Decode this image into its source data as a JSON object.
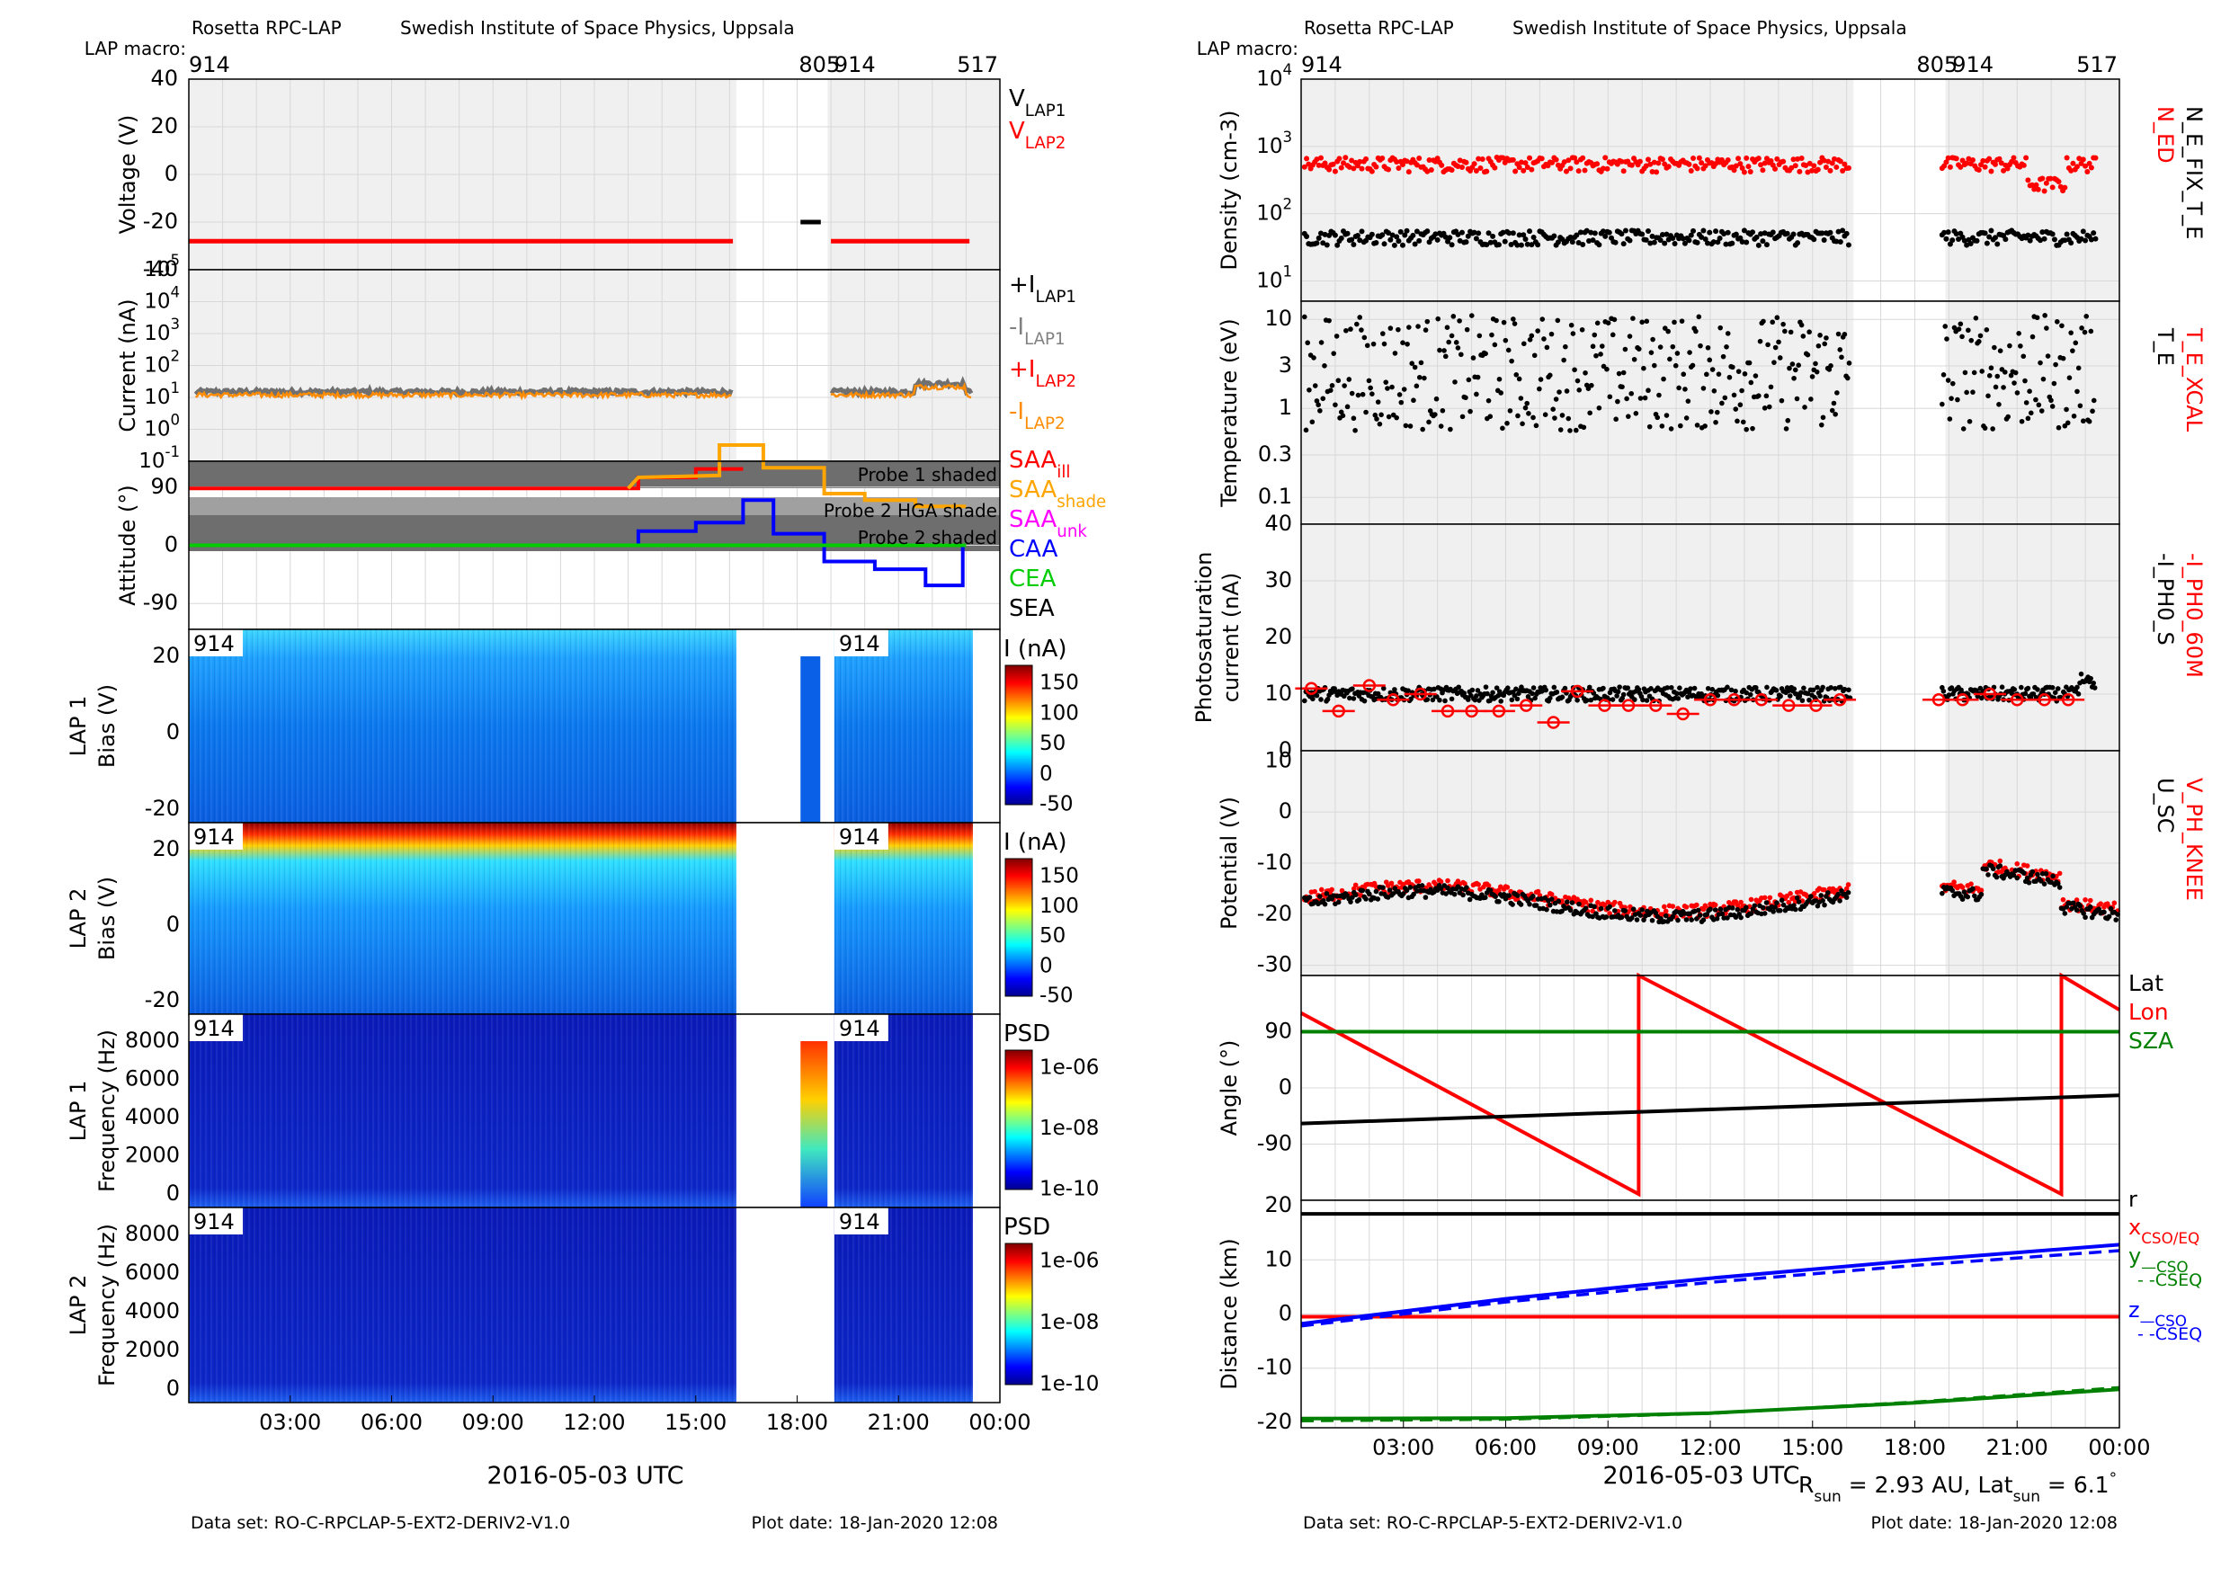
{
  "left": {
    "header": {
      "title": "Rosetta RPC-LAP",
      "institute": "Swedish Institute of Space Physics, Uppsala",
      "macro_label": "LAP macro:"
    },
    "macros": [
      "914",
      "805",
      "914",
      "517"
    ],
    "footer": {
      "dataset": "Data set: RO-C-RPCLAP-5-EXT2-DERIV2-V1.0",
      "plot_date": "Plot date: 18-Jan-2020 12:08"
    },
    "xlabel": "2016-05-03 UTC",
    "xticks": [
      "03:00",
      "06:00",
      "09:00",
      "12:00",
      "15:00",
      "18:00",
      "21:00",
      "00:00"
    ]
  },
  "right": {
    "header": {
      "title": "Rosetta RPC-LAP",
      "institute": "Swedish Institute of Space Physics, Uppsala",
      "macro_label": "LAP macro:"
    },
    "macros": [
      "914",
      "805",
      "914",
      "517"
    ],
    "footer": {
      "dataset": "Data set: RO-C-RPCLAP-5-EXT2-DERIV2-V1.0",
      "plot_date": "Plot date: 18-Jan-2020 12:08"
    },
    "xlabel": "2016-05-03 UTC",
    "xticks": [
      "03:00",
      "06:00",
      "09:00",
      "12:00",
      "15:00",
      "18:00",
      "21:00",
      "00:00"
    ],
    "rsun_text": "R",
    "rsun_sub": "sun",
    "rsun_mid": " = 2.93 AU, Lat",
    "latsun_sub": "sun",
    "latsun_val": " = 6.1",
    "deg": "°"
  },
  "chart_data": [
    {
      "type": "line",
      "title": "Voltage",
      "ylabel": "Voltage (V)",
      "ylim": [
        -40,
        40
      ],
      "yticks": [
        "40",
        "20",
        "0",
        "-20",
        "-40"
      ],
      "legend": [
        {
          "text": "V",
          "sub": "LAP1",
          "color": "#000000"
        },
        {
          "text": "V",
          "sub": "LAP2",
          "color": "#ff0000"
        }
      ],
      "series": [
        {
          "name": "V_LAP2",
          "color": "#ff0000",
          "segments": [
            {
              "x": [
                0,
                16.1
              ],
              "y": [
                -28,
                -28
              ]
            },
            {
              "x": [
                19,
                23.1
              ],
              "y": [
                -28,
                -28
              ]
            }
          ]
        },
        {
          "name": "V_LAP1",
          "color": "#000000",
          "segments": [
            {
              "x": [
                18.1,
                18.7
              ],
              "y": [
                -20,
                -20
              ]
            }
          ]
        }
      ]
    },
    {
      "type": "line",
      "title": "Current",
      "ylabel": "Current (nA)",
      "yscale": "log",
      "ylim": [
        0.1,
        100000
      ],
      "yticks": [
        {
          "base": "10",
          "exp": "-1"
        },
        {
          "base": "10",
          "exp": "0"
        },
        {
          "base": "10",
          "exp": "1"
        },
        {
          "base": "10",
          "exp": "2"
        },
        {
          "base": "10",
          "exp": "3"
        },
        {
          "base": "10",
          "exp": "4"
        },
        {
          "base": "10",
          "exp": "5"
        }
      ],
      "legend": [
        {
          "text": "+I",
          "sub": "LAP1",
          "color": "#000000"
        },
        {
          "text": "-I",
          "sub": "LAP1",
          "color": "#808080"
        },
        {
          "text": "+I",
          "sub": "LAP2",
          "color": "#ff0000"
        },
        {
          "text": "-I",
          "sub": "LAP2",
          "color": "#ff8c00"
        }
      ],
      "series": [
        {
          "name": "-I_LAP1",
          "color": "#707070",
          "approx_value": 15
        },
        {
          "name": "-I_LAP2",
          "color": "#ff8c00",
          "approx_value": 12
        }
      ]
    },
    {
      "type": "line",
      "title": "Attitude",
      "ylabel": "Attitude (°)",
      "ylim": [
        -130,
        130
      ],
      "yticks": [
        "90",
        "0",
        "-90"
      ],
      "annotations": [
        "Probe 1 shaded",
        "Probe 2 HGA shade",
        "Probe 2 shaded"
      ],
      "legend": [
        {
          "text": "SAA",
          "sub": "ill",
          "color": "#ff0000"
        },
        {
          "text": "SAA",
          "sub": "shade",
          "color": "#ffa500"
        },
        {
          "text": "SAA",
          "sub": "unk",
          "color": "#ff00ff"
        },
        {
          "text": "CAA",
          "sub": "",
          "color": "#0000ff"
        },
        {
          "text": "CEA",
          "sub": "",
          "color": "#00cc00"
        },
        {
          "text": "SEA",
          "sub": "",
          "color": "#000000"
        }
      ],
      "series": [
        {
          "name": "SAA_ill",
          "color": "#ff0000",
          "x": [
            0,
            13.3,
            13.3,
            15,
            15,
            16.4
          ],
          "y": [
            88,
            88,
            105,
            105,
            118,
            118
          ]
        },
        {
          "name": "SAA_shade",
          "color": "#ffa500",
          "x": [
            13,
            13.3,
            15.7,
            15.7,
            17,
            17,
            18.8,
            18.8,
            20,
            20,
            21.5,
            21.5,
            23
          ],
          "y": [
            88,
            105,
            108,
            155,
            155,
            120,
            120,
            80,
            80,
            70,
            70,
            60,
            60
          ]
        },
        {
          "name": "CAA",
          "color": "#0000ff",
          "x": [
            0,
            13.3,
            13.3,
            15,
            15,
            16.4,
            16.4,
            17.3,
            17.3,
            18.8,
            18.8,
            20.3,
            20.3,
            21.8,
            21.8,
            22.9,
            22.9
          ],
          "y": [
            0,
            0,
            22,
            22,
            35,
            35,
            70,
            70,
            18,
            18,
            -25,
            -25,
            -37,
            -37,
            -62,
            -62,
            0
          ]
        },
        {
          "name": "CEA",
          "color": "#00cc00",
          "x": [
            0,
            23
          ],
          "y": [
            0,
            0
          ]
        }
      ]
    },
    {
      "type": "heatmap",
      "title": "LAP 1",
      "ylabel": "Bias (V)",
      "yticks": [
        "20",
        "0",
        "-20"
      ],
      "colorbar": {
        "label": "I (nA)",
        "ticks": [
          "150",
          "100",
          "50",
          "0",
          "-50"
        ]
      }
    },
    {
      "type": "heatmap",
      "title": "LAP 2",
      "ylabel": "Bias (V)",
      "yticks": [
        "20",
        "0",
        "-20"
      ],
      "colorbar": {
        "label": "I (nA)",
        "ticks": [
          "150",
          "100",
          "50",
          "0",
          "-50"
        ]
      }
    },
    {
      "type": "heatmap",
      "title": "LAP 1",
      "ylabel": "Frequency (Hz)",
      "yticks": [
        "8000",
        "6000",
        "4000",
        "2000",
        "0"
      ],
      "colorbar": {
        "label": "PSD",
        "ticks": [
          "1e-06",
          "1e-08",
          "1e-10"
        ]
      }
    },
    {
      "type": "heatmap",
      "title": "LAP 2",
      "ylabel": "Frequency (Hz)",
      "yticks": [
        "8000",
        "6000",
        "4000",
        "2000",
        "0"
      ],
      "colorbar": {
        "label": "PSD",
        "ticks": [
          "1e-06",
          "1e-08",
          "1e-10"
        ]
      }
    },
    {
      "type": "scatter",
      "title": "Density",
      "ylabel": "Density (cm-3)",
      "yscale": "log",
      "ylim": [
        5,
        10000
      ],
      "yticks": [
        {
          "base": "10",
          "exp": "1"
        },
        {
          "base": "10",
          "exp": "2"
        },
        {
          "base": "10",
          "exp": "3"
        },
        {
          "base": "10",
          "exp": "4"
        }
      ],
      "side_labels": [
        {
          "text": "N_ED",
          "color": "#ff0000"
        },
        {
          "text": "N_E_FIX_T_E",
          "color": "#000000"
        }
      ],
      "series": [
        {
          "name": "N_ED",
          "color": "#ff0000",
          "approx_value": 550
        },
        {
          "name": "N_E_FIX_T_E",
          "color": "#000000",
          "approx_value": 45
        }
      ]
    },
    {
      "type": "scatter",
      "title": "Temperature",
      "ylabel": "Temperature (eV)",
      "yscale": "log",
      "ylim": [
        0.05,
        16
      ],
      "yticks": [
        "10",
        "3",
        "1",
        "0.3",
        "0.1"
      ],
      "side_labels": [
        {
          "text": "T_E_XCAL",
          "color": "#ff0000"
        },
        {
          "text": "T_E",
          "color": "#000000"
        }
      ],
      "series": [
        {
          "name": "T_E",
          "color": "#000000",
          "approx_value": 2.5
        }
      ]
    },
    {
      "type": "scatter",
      "title": "Photosaturation current",
      "ylabel": "Photosaturation current (nA)",
      "ylim": [
        0,
        40
      ],
      "yticks": [
        "40",
        "30",
        "20",
        "10",
        "0"
      ],
      "side_labels": [
        {
          "text": "-I_PH0_60M",
          "color": "#ff0000"
        },
        {
          "text": "-I_PH0_S",
          "color": "#000000"
        }
      ],
      "series": [
        {
          "name": "-I_PH0_S",
          "color": "#000000",
          "approx_value": 10
        },
        {
          "name": "-I_PH0_60M",
          "color": "#ff0000",
          "x": [
            0.3,
            1.1,
            2,
            2.7,
            3.5,
            4.3,
            5,
            5.8,
            6.6,
            7.4,
            8.1,
            8.9,
            9.6,
            10.4,
            11.2,
            12,
            12.7,
            13.5,
            14.3,
            15.1,
            15.8,
            18.7,
            19.4,
            20.2,
            21,
            21.8,
            22.5
          ],
          "y": [
            11,
            7,
            11.5,
            9,
            10,
            7,
            7,
            7,
            8,
            5,
            10.5,
            8,
            8,
            8,
            6.5,
            9,
            9,
            9,
            8,
            8,
            9,
            9,
            9,
            10,
            9,
            9,
            9
          ]
        }
      ]
    },
    {
      "type": "scatter",
      "title": "Potential",
      "ylabel": "Potential (V)",
      "ylim": [
        -32,
        12
      ],
      "yticks": [
        "10",
        "0",
        "-10",
        "-20",
        "-30"
      ],
      "side_labels": [
        {
          "text": "V_PH_KNEE",
          "color": "#ff0000"
        },
        {
          "text": "U_SC",
          "color": "#000000"
        }
      ],
      "series": [
        {
          "name": "V_PH_KNEE",
          "color": "#ff0000",
          "approx_value": -17
        },
        {
          "name": "U_SC",
          "color": "#000000",
          "approx_value": -18
        }
      ]
    },
    {
      "type": "line",
      "title": "Angle",
      "ylabel": "Angle (°)",
      "ylim": [
        -180,
        180
      ],
      "yticks": [
        "90",
        "0",
        "-90"
      ],
      "legend": [
        {
          "text": "Lat",
          "color": "#000000"
        },
        {
          "text": "Lon",
          "color": "#ff0000"
        },
        {
          "text": "SZA",
          "color": "#008000"
        }
      ],
      "series": [
        {
          "name": "Lon",
          "color": "#ff0000",
          "x": [
            0,
            9.9,
            9.9,
            22.3,
            22.3,
            24
          ],
          "y": [
            120,
            -170,
            180,
            -170,
            180,
            125
          ]
        },
        {
          "name": "Lat",
          "color": "#000000",
          "x": [
            0,
            24
          ],
          "y": [
            -57,
            -12
          ]
        },
        {
          "name": "SZA",
          "color": "#008000",
          "x": [
            0,
            24
          ],
          "y": [
            90,
            90
          ]
        }
      ]
    },
    {
      "type": "line",
      "title": "Distance",
      "ylabel": "Distance (km)",
      "ylim": [
        -21,
        21
      ],
      "yticks": [
        "20",
        "10",
        "0",
        "-10",
        "-20"
      ],
      "legend": [
        {
          "text": "r",
          "sub": "",
          "color": "#000000"
        },
        {
          "text": "x",
          "sub": "CSO/EQ",
          "color": "#ff0000"
        },
        {
          "text": "y",
          "sub": "—CSO",
          "color": "#008000"
        },
        {
          "text": "- -CSEQ",
          "sub": "",
          "color": "#008000"
        },
        {
          "text": "z",
          "sub": "—CSO",
          "color": "#0000ff"
        },
        {
          "text": "- -CSEQ",
          "sub": "",
          "color": "#0000ff"
        }
      ],
      "series": [
        {
          "name": "r",
          "color": "#000000",
          "x": [
            0,
            24
          ],
          "y": [
            18.5,
            18.5
          ]
        },
        {
          "name": "x",
          "color": "#ff0000",
          "x": [
            0,
            24
          ],
          "y": [
            -0.5,
            -0.5
          ]
        },
        {
          "name": "y_CSO",
          "color": "#008000",
          "x": [
            0,
            6,
            12,
            18,
            24
          ],
          "y": [
            -19.3,
            -19.2,
            -18.3,
            -16.4,
            -13.9
          ]
        },
        {
          "name": "z_CSO",
          "color": "#0000ff",
          "x": [
            0,
            6,
            12,
            18,
            24
          ],
          "y": [
            -1.8,
            2.8,
            6.6,
            9.9,
            12.8
          ]
        }
      ]
    }
  ]
}
